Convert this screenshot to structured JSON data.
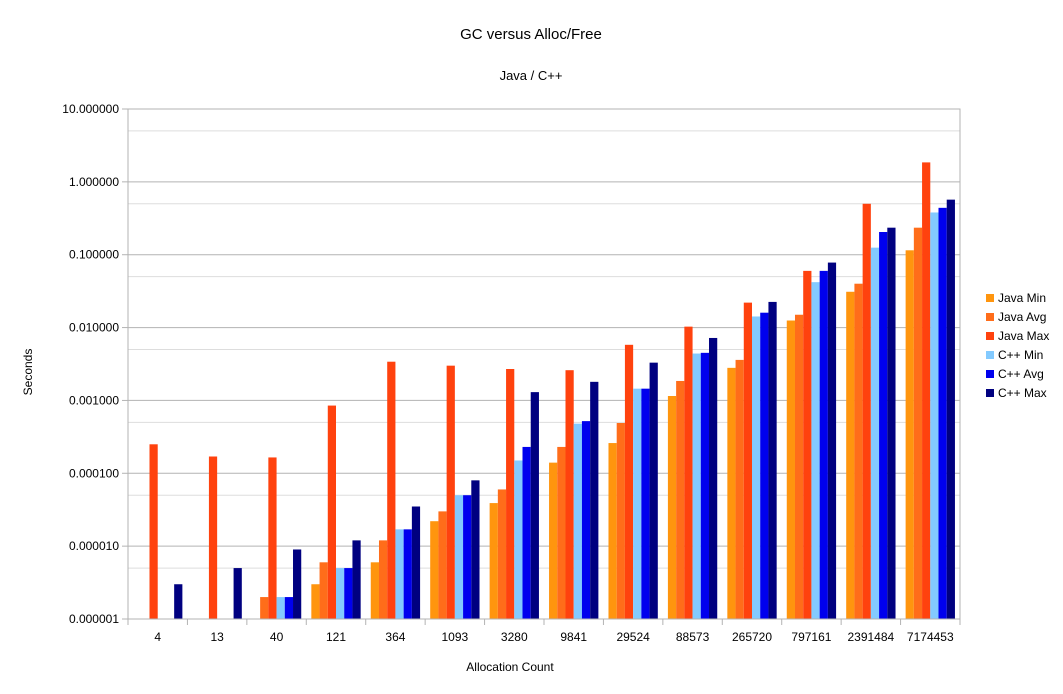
{
  "chart_data": {
    "type": "bar",
    "title": "GC versus Alloc/Free",
    "subtitle": "Java / C++",
    "xlabel": "Allocation Count",
    "ylabel": "Seconds",
    "yscale": "log",
    "ylim": [
      1e-06,
      10
    ],
    "ytick_values": [
      1e-06,
      1e-05,
      0.0001,
      0.001,
      0.01,
      0.1,
      1,
      10
    ],
    "ytick_labels": [
      "0.000001",
      "0.000010",
      "0.000100",
      "0.001000",
      "0.010000",
      "0.100000",
      "1.000000",
      "10.000000"
    ],
    "grid": true,
    "legend_position": "right",
    "categories": [
      "4",
      "13",
      "40",
      "121",
      "364",
      "1093",
      "3280",
      "9841",
      "29524",
      "88573",
      "265720",
      "797161",
      "2391484",
      "7174453"
    ],
    "series": [
      {
        "name": "Java Min",
        "color": "#ff950e",
        "values": [
          0,
          0,
          0,
          3e-06,
          6e-06,
          2.2e-05,
          3.9e-05,
          0.00014,
          0.00026,
          0.00115,
          0.0028,
          0.0125,
          0.031,
          0.115
        ]
      },
      {
        "name": "Java Avg",
        "color": "#ff6d1a",
        "values": [
          0,
          0,
          2e-06,
          6e-06,
          1.2e-05,
          3e-05,
          6e-05,
          0.00023,
          0.00049,
          0.00185,
          0.0036,
          0.015,
          0.04,
          0.235
        ]
      },
      {
        "name": "Java Max",
        "color": "#ff420e",
        "values": [
          0.00025,
          0.00017,
          0.000165,
          0.00085,
          0.0034,
          0.003,
          0.0027,
          0.0026,
          0.0058,
          0.0103,
          0.022,
          0.06,
          0.5,
          1.85
        ]
      },
      {
        "name": "C++ Min",
        "color": "#83caff",
        "values": [
          0,
          0,
          2e-06,
          5e-06,
          1.7e-05,
          5e-05,
          0.00015,
          0.00048,
          0.00145,
          0.0044,
          0.0142,
          0.042,
          0.125,
          0.38
        ]
      },
      {
        "name": "C++ Avg",
        "color": "#0000ee",
        "values": [
          0,
          0,
          2e-06,
          5e-06,
          1.7e-05,
          5e-05,
          0.00023,
          0.00052,
          0.00145,
          0.0045,
          0.016,
          0.06,
          0.205,
          0.44
        ]
      },
      {
        "name": "C++ Max",
        "color": "#000080",
        "values": [
          3e-06,
          5e-06,
          9e-06,
          1.2e-05,
          3.5e-05,
          8e-05,
          0.0013,
          0.0018,
          0.0033,
          0.0072,
          0.0225,
          0.078,
          0.235,
          0.57
        ]
      }
    ]
  }
}
